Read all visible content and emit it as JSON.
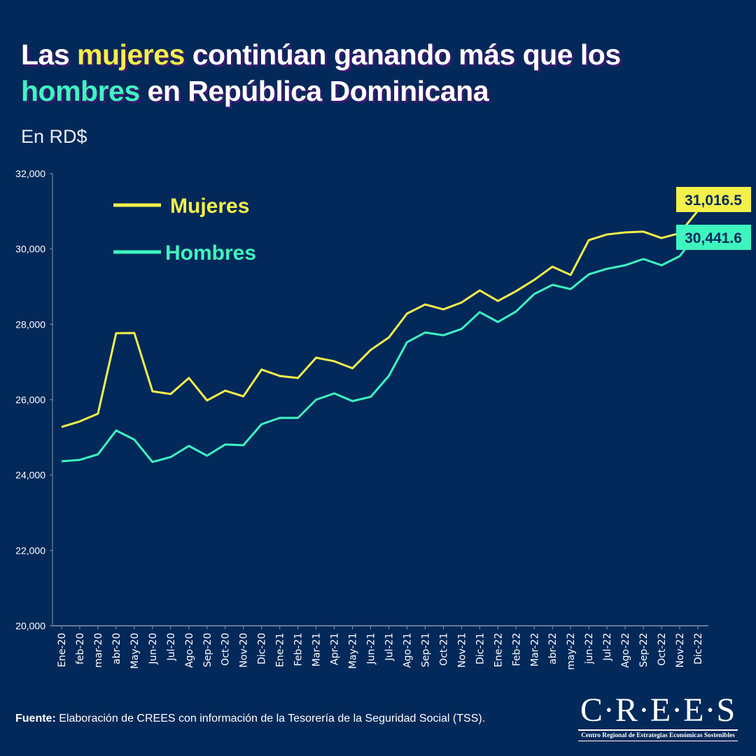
{
  "title": {
    "part1": "Las ",
    "women": "mujeres",
    "part2": " continúan ganando más que los",
    "men": "hombres",
    "part3": " en República Dominicana"
  },
  "subtitle": "En RD$",
  "source": {
    "label": "Fuente:",
    "text": " Elaboración de CREES con información de la Tesorería de la Seguridad Social (TSS)."
  },
  "logo": {
    "main": "C·R·E·E·S",
    "sub": "Centro Regional de Estrategias Económicas Sostenibles"
  },
  "colors": {
    "background": "#03295a",
    "mujeres": "#f3f04a",
    "hombres": "#3ef5c0",
    "axis": "#8a93a8"
  },
  "chart_data": {
    "type": "line",
    "categories": [
      "Ene-20",
      "feb-20",
      "mar-20",
      "abr-20",
      "May-20",
      "Jun-20",
      "Jul-20",
      "Ago-20",
      "Sep-20",
      "Oct-20",
      "Nov-20",
      "Dic-20",
      "Ene-21",
      "Feb-21",
      "Mar-21",
      "Apr-21",
      "May-21",
      "Jun-21",
      "Jul-21",
      "Ago-21",
      "Sep-21",
      "Oct-21",
      "Nov-21",
      "Dic-21",
      "Ene-22",
      "Feb-22",
      "Mar-22",
      "abr-22",
      "may-22",
      "jun-22",
      "Jul-22",
      "Ago-22",
      "Sep-22",
      "Oct-22",
      "Nov-22",
      "Dic-22"
    ],
    "series": [
      {
        "name": "Mujeres",
        "color": "#f3f04a",
        "end_label": "31,016.5",
        "values": [
          25276,
          25424,
          25629,
          27765,
          27770,
          26223,
          26150,
          26576,
          25980,
          26240,
          26090,
          26800,
          26630,
          26576,
          27115,
          27020,
          26835,
          27320,
          27650,
          28285,
          28527,
          28397,
          28580,
          28900,
          28620,
          28880,
          29180,
          29530,
          29310,
          30235,
          30385,
          30440,
          30460,
          30290,
          30420,
          31016.5
        ]
      },
      {
        "name": "Hombres",
        "color": "#3ef5c0",
        "end_label": "30,441.6",
        "values": [
          24366,
          24403,
          24550,
          25183,
          24940,
          24347,
          24477,
          24774,
          24514,
          24811,
          24793,
          25350,
          25517,
          25517,
          26000,
          26167,
          25963,
          26075,
          26632,
          27524,
          27784,
          27710,
          27877,
          28323,
          28062,
          28341,
          28805,
          29047,
          28935,
          29326,
          29474,
          29567,
          29734,
          29567,
          29808,
          30441.6
        ]
      }
    ],
    "ylim": [
      20000,
      32000
    ],
    "yticks": [
      "20,000",
      "22,000",
      "24,000",
      "26,000",
      "28,000",
      "30,000",
      "32,000"
    ],
    "ytick_values": [
      20000,
      22000,
      24000,
      26000,
      28000,
      30000,
      32000
    ],
    "grid": false,
    "legend": "top-left"
  }
}
